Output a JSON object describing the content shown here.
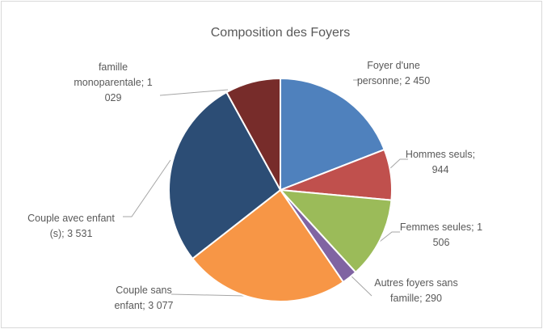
{
  "chart_data": {
    "type": "pie",
    "title": "Composition des Foyers",
    "categories": [
      "Foyer d'une personne",
      "Hommes seuls",
      "Femmes seules",
      "Autres foyers sans famille",
      "Couple sans enfant",
      "Couple avec enfant (s)",
      "famille monoparentale"
    ],
    "values": [
      2450,
      944,
      1506,
      290,
      3077,
      3531,
      1029
    ],
    "value_labels": [
      "2 450",
      "944",
      "1 506",
      "290",
      "3 077",
      "3 531",
      "1 029"
    ],
    "separator": ";",
    "colors": [
      "#4f81bd",
      "#c0504d",
      "#9bbb59",
      "#8064a2",
      "#f79646",
      "#2c4d75",
      "#772c2a"
    ]
  }
}
